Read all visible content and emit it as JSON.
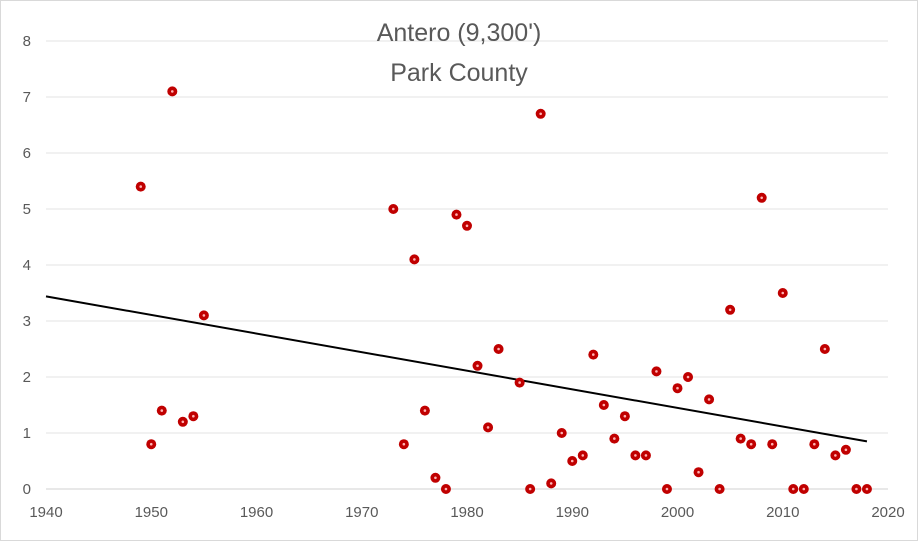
{
  "chart_data": {
    "type": "scatter",
    "title": [
      "Antero  (9,300')",
      "Park County"
    ],
    "xlabel": "",
    "ylabel": "",
    "xlim": [
      1940,
      2020
    ],
    "ylim": [
      0,
      8
    ],
    "x_ticks": [
      1940,
      1950,
      1960,
      1970,
      1980,
      1990,
      2000,
      2010,
      2020
    ],
    "y_ticks": [
      0,
      1,
      2,
      3,
      4,
      5,
      6,
      7,
      8
    ],
    "grid": "horizontal",
    "legend": "none",
    "marker_color": "#c00000",
    "trendline_color": "#000000",
    "trendline": {
      "x": [
        1940,
        2018
      ],
      "y": [
        3.44,
        0.85
      ]
    },
    "series": [
      {
        "x": [
          1949,
          1950,
          1951,
          1952,
          1953,
          1954,
          1955,
          1973,
          1974,
          1975,
          1976,
          1977,
          1978,
          1979,
          1980,
          1981,
          1982,
          1983,
          1985,
          1986,
          1987,
          1988,
          1989,
          1990,
          1991,
          1992,
          1993,
          1994,
          1995,
          1996,
          1997,
          1998,
          1999,
          2000,
          2001,
          2002,
          2003,
          2004,
          2005,
          2006,
          2007,
          2008,
          2009,
          2010,
          2011,
          2012,
          2013,
          2014,
          2015,
          2016,
          2017,
          2018
        ],
        "y": [
          5.4,
          0.8,
          1.4,
          7.1,
          1.2,
          1.3,
          3.1,
          5.0,
          0.8,
          4.1,
          1.4,
          0.2,
          0.0,
          4.9,
          4.7,
          2.2,
          1.1,
          2.5,
          1.9,
          0.0,
          6.7,
          0.1,
          1.0,
          0.5,
          0.6,
          2.4,
          1.5,
          0.9,
          1.3,
          0.6,
          0.6,
          2.1,
          0.0,
          1.8,
          2.0,
          0.3,
          1.6,
          0.0,
          3.2,
          0.9,
          0.8,
          5.2,
          0.8,
          3.5,
          0.0,
          0.0,
          0.8,
          2.5,
          0.6,
          0.7,
          0.0,
          0.0
        ]
      }
    ]
  }
}
